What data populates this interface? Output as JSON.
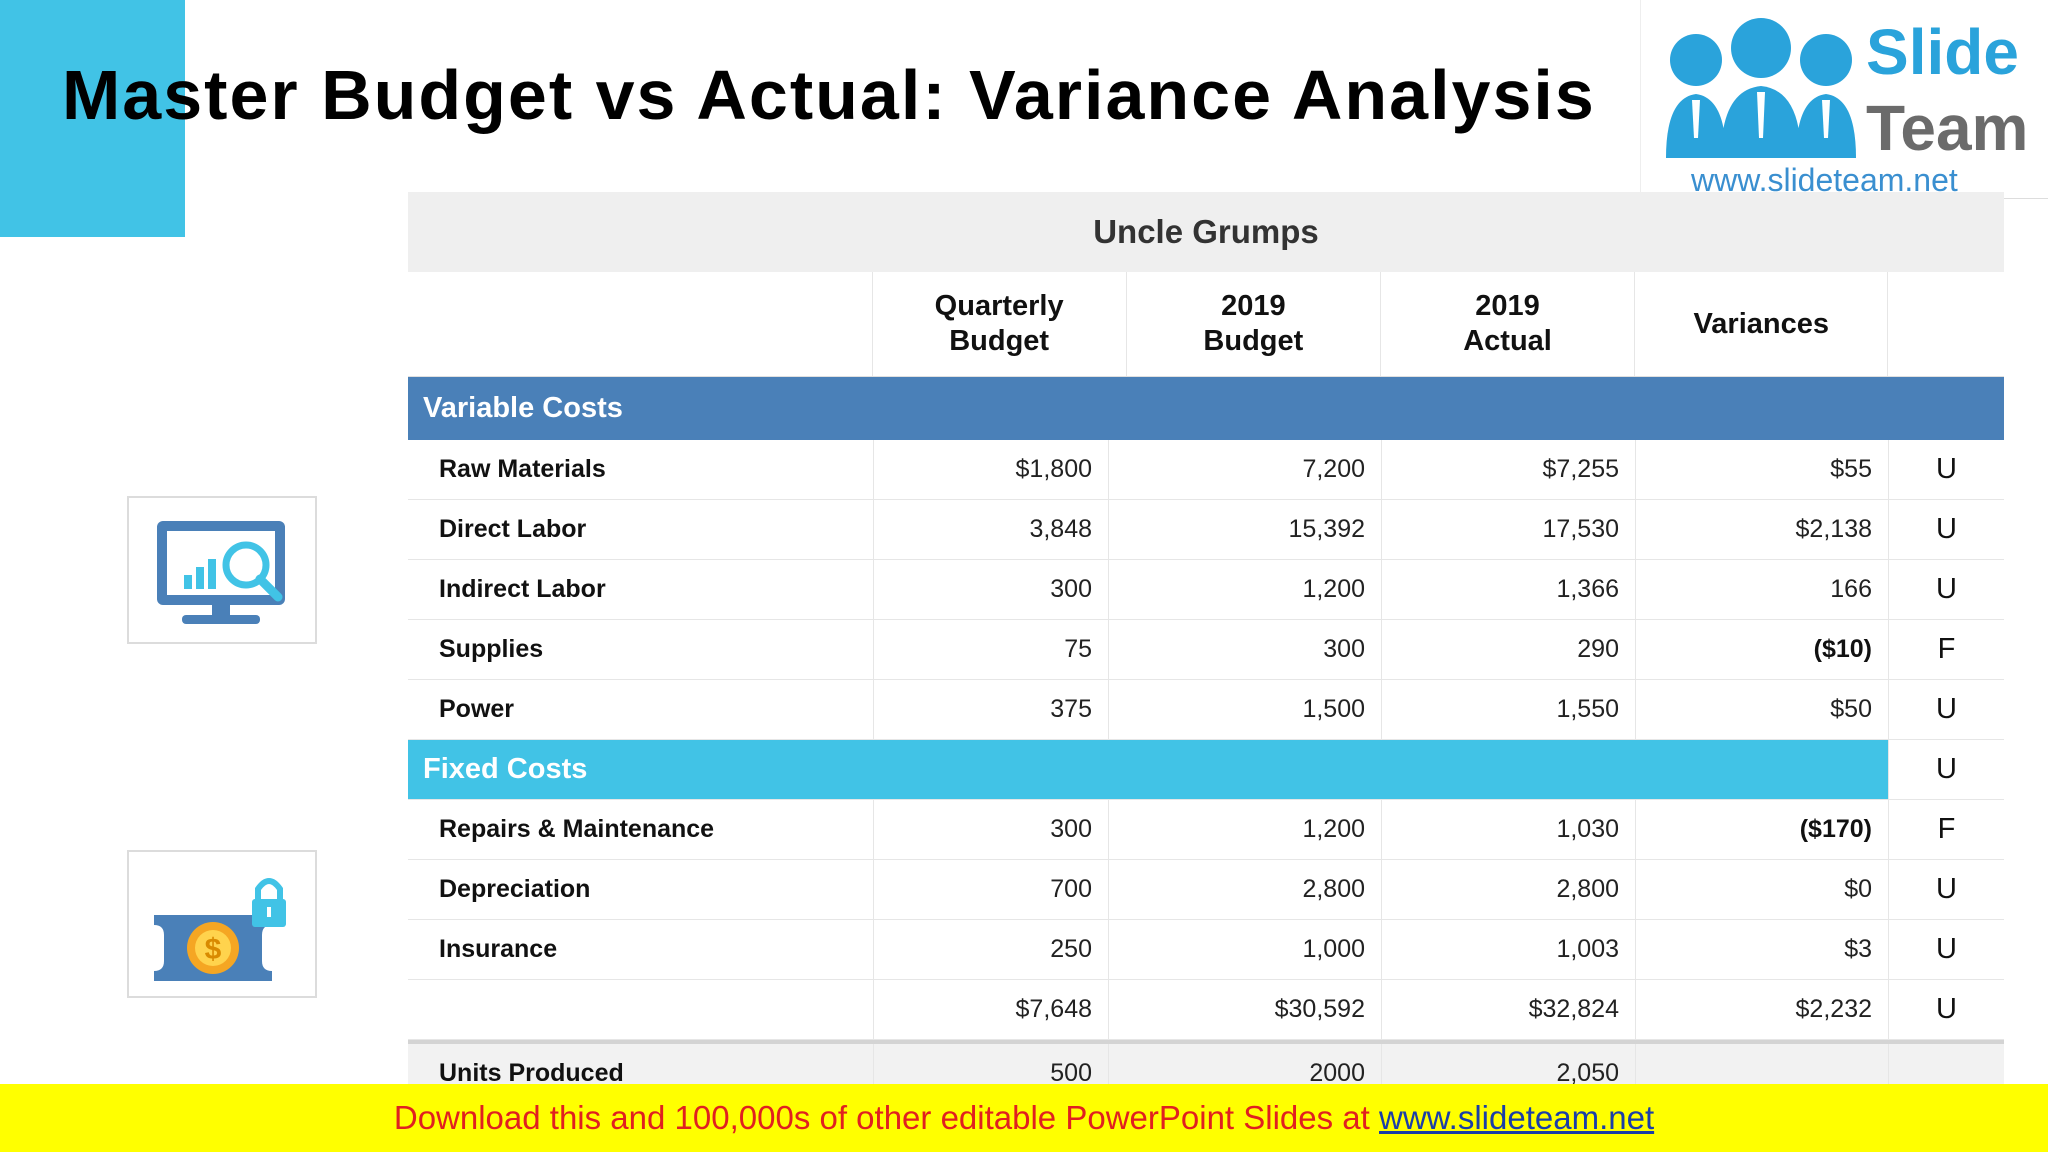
{
  "slide": {
    "title": "Master Budget vs Actual: Variance Analysis"
  },
  "logo": {
    "word1": "Slide",
    "word2": "Team",
    "url": "www.slideteam.net"
  },
  "icons": {
    "top": "monitor-analytics-icon",
    "bottom": "money-lock-icon"
  },
  "table": {
    "company": "Uncle Grumps",
    "headers": {
      "col1": "Quarterly Budget",
      "col1_line1": "Quarterly",
      "col1_line2": "Budget",
      "col2_line1": "2019",
      "col2_line2": "Budget",
      "col3_line1": "2019",
      "col3_line2": "Actual",
      "col4": "Variances"
    },
    "variable_label": "Variable Costs",
    "fixed_label": "Fixed Costs",
    "fixed_flag": "U",
    "variable_rows": [
      {
        "label": "Raw Materials",
        "qb": "$1,800",
        "b": "7,200",
        "a": "$7,255",
        "v": "$55",
        "f": "U"
      },
      {
        "label": "Direct Labor",
        "qb": "3,848",
        "b": "15,392",
        "a": "17,530",
        "v": "$2,138",
        "f": "U"
      },
      {
        "label": "Indirect Labor",
        "qb": "300",
        "b": "1,200",
        "a": "1,366",
        "v": "166",
        "f": "U"
      },
      {
        "label": "Supplies",
        "qb": "75",
        "b": "300",
        "a": "290",
        "v": "($10)",
        "f": "F"
      },
      {
        "label": "Power",
        "qb": "375",
        "b": "1,500",
        "a": "1,550",
        "v": "$50",
        "f": "U"
      }
    ],
    "fixed_rows": [
      {
        "label": "Repairs & Maintenance",
        "qb": "300",
        "b": "1,200",
        "a": "1,030",
        "v": "($170)",
        "f": "F"
      },
      {
        "label": "Depreciation",
        "qb": "700",
        "b": "2,800",
        "a": "2,800",
        "v": "$0",
        "f": "U"
      },
      {
        "label": "Insurance",
        "qb": "250",
        "b": "1,000",
        "a": "1,003",
        "v": "$3",
        "f": "U"
      },
      {
        "label": "",
        "qb": "$7,648",
        "b": "$30,592",
        "a": "$32,824",
        "v": "$2,232",
        "f": "U"
      }
    ],
    "units_row": {
      "label": "Units Produced",
      "qb": "500",
      "b": "2000",
      "a": "2,050",
      "v": "",
      "f": ""
    }
  },
  "footer": {
    "text": "Download this and 100,000s of other editable PowerPoint Slides at ",
    "link": "www.slideteam.net"
  },
  "colors": {
    "accent_cyan": "#41c3e6",
    "variable_header_blue": "#4a80b8",
    "footer_yellow": "#ffff00",
    "footer_text_red": "#e02020"
  }
}
